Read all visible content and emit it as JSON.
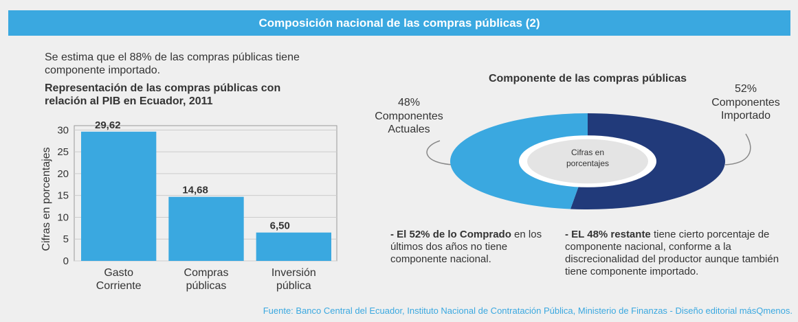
{
  "header": {
    "title": "Composición nacional de las compras públicas (2)"
  },
  "intro": "Se estima que el 88% de las compras públicas tiene componente importado.",
  "chart_data": [
    {
      "type": "bar",
      "title": "Representación de las compras públicas con relación al PIB en Ecuador, 2011",
      "y_label": "Cifras en porcentajes",
      "categories": [
        "Gasto Corriente",
        "Compras públicas",
        "Inversión pública"
      ],
      "values": [
        29.62,
        14.68,
        6.5
      ],
      "value_labels": [
        "29,62",
        "14,68",
        "6,50"
      ],
      "color": "#3aa8e0",
      "ylim": [
        0,
        31
      ],
      "yticks": [
        0,
        5,
        10,
        15,
        20,
        25,
        30
      ],
      "grid": true
    },
    {
      "type": "donut",
      "title": "Componente de las compras públicas",
      "center_label": "Cifras en porcentajes",
      "categories": [
        "Componentes Importado",
        "Componentes Actuales"
      ],
      "values": [
        52,
        48
      ],
      "value_labels": [
        "52%",
        "48%"
      ],
      "colors": [
        "#213a7a",
        "#3aa8e0"
      ]
    }
  ],
  "notes": [
    {
      "bold": "- El 52% de lo  Comprado",
      "text": "en los últimos dos  años no tiene componente nacional."
    },
    {
      "bold": "- EL 48% restante",
      "text": "tiene cierto porcentaje de componente nacional, conforme a la discrecionalidad del productor aunque también tiene componente importado."
    }
  ],
  "source": "Fuente: Banco Central del Ecuador, Instituto Nacional de Contratación Pública, Ministerio de Finanzas - Diseño editorial másQmenos."
}
